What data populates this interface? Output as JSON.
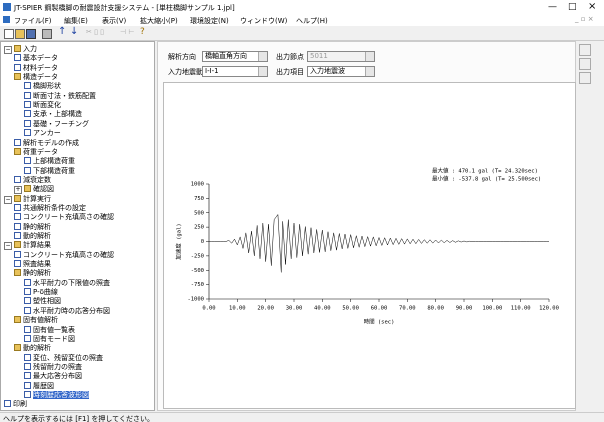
{
  "window": {
    "title": "JT-SPIER 鋼製橋脚の耐震設計支援システム - [単柱橋脚サンプル 1.jpl]"
  },
  "menu": [
    "ファイル(F)",
    "編集(E)",
    "表示(V)",
    "拡大縮小(P)",
    "環境設定(N)",
    "ウィンドウ(W)",
    "ヘルプ(H)"
  ],
  "form": {
    "direction_label": "解析方向",
    "direction": "橋軸直角方向",
    "node_label": "出力節点",
    "node": "5011",
    "wave_label": "入力地震動",
    "wave": "I-I-1",
    "item_label": "出力項目",
    "item": "入力地震波"
  },
  "tree": [
    {
      "label": "入力",
      "children": [
        {
          "label": "基本データ"
        },
        {
          "label": "材料データ"
        },
        {
          "label": "構造データ",
          "children": [
            {
              "label": "橋脚形状"
            },
            {
              "label": "断面寸法・鉄筋配置"
            },
            {
              "label": "断面変化"
            },
            {
              "label": "支承・上部構造"
            },
            {
              "label": "基礎・フーチング"
            },
            {
              "label": "アンカー"
            }
          ]
        },
        {
          "label": "解析モデルの作成"
        },
        {
          "label": "荷重データ",
          "children": [
            {
              "label": "上部構造荷重"
            },
            {
              "label": "下部構造荷重"
            }
          ]
        },
        {
          "label": "減衰定数"
        },
        {
          "label": "確認図",
          "collapsed": true
        }
      ]
    },
    {
      "label": "計算実行",
      "children": [
        {
          "label": "共通解析条件の設定"
        },
        {
          "label": "コンクリート充填高さの確認"
        },
        {
          "label": "静的解析"
        },
        {
          "label": "動的解析"
        }
      ]
    },
    {
      "label": "計算結果",
      "children": [
        {
          "label": "コンクリート充填高さの確認"
        },
        {
          "label": "照査結果"
        },
        {
          "label": "静的解析",
          "children": [
            {
              "label": "水平耐力の下限値の照査"
            },
            {
              "label": "P-δ曲線"
            },
            {
              "label": "塑性相図"
            },
            {
              "label": "水平耐力時の応答分布図"
            }
          ]
        },
        {
          "label": "固有値解析",
          "children": [
            {
              "label": "固有値一覧表"
            },
            {
              "label": "固有モード図"
            }
          ]
        },
        {
          "label": "動的解析",
          "children": [
            {
              "label": "変位、残留変位の照査"
            },
            {
              "label": "残留耐力の照査"
            },
            {
              "label": "最大応答分布図"
            },
            {
              "label": "履歴図"
            },
            {
              "label": "時刻歴応答波形図",
              "selected": true
            }
          ]
        }
      ]
    },
    {
      "label": "印刷"
    }
  ],
  "status": "ヘルプを表示するには [F1] を押してください。",
  "chart_data": {
    "type": "line",
    "x_label": "時間 (sec)",
    "y_label": "加速度 (gal)",
    "annotations": [
      "最大値 :   470.1 gal (T= 24.320sec)",
      "最小値 :  -537.8 gal (T= 25.500sec)"
    ],
    "x": [
      0,
      1,
      2,
      3,
      4,
      5,
      6,
      7,
      8,
      9,
      10,
      11,
      12,
      13,
      14,
      15,
      16,
      17,
      18,
      19,
      20,
      21,
      22,
      23,
      24.32,
      25.5,
      26,
      27,
      28,
      29,
      30,
      31,
      32,
      33,
      34,
      35,
      36,
      37,
      38,
      39,
      40,
      41,
      42,
      43,
      44,
      45,
      46,
      47,
      48,
      49,
      50,
      51,
      52,
      53,
      54,
      55,
      56,
      57,
      58,
      59,
      60,
      61,
      62,
      63,
      64,
      65,
      66,
      67,
      68,
      69,
      70,
      71,
      72,
      73,
      74,
      75,
      76,
      77,
      78,
      79,
      80,
      81,
      82,
      83,
      84,
      85,
      86,
      87,
      88,
      89,
      90,
      91,
      92,
      93,
      94,
      95,
      96,
      97,
      98,
      99,
      100,
      101,
      102,
      103,
      104,
      105,
      106,
      107,
      108,
      109,
      110,
      111,
      112,
      113,
      114,
      115,
      116,
      117,
      118,
      119,
      120
    ],
    "series": [
      {
        "color": "#000000",
        "values": [
          0,
          0,
          0,
          0,
          0,
          0,
          0,
          20,
          -30,
          40,
          -60,
          80,
          -120,
          150,
          -200,
          180,
          -250,
          280,
          -300,
          320,
          -350,
          300,
          -420,
          380,
          470.1,
          -537.8,
          350,
          -400,
          380,
          -300,
          320,
          -280,
          300,
          -250,
          260,
          -220,
          240,
          -200,
          210,
          -190,
          200,
          -180,
          170,
          -160,
          150,
          -150,
          140,
          -130,
          130,
          -120,
          120,
          -110,
          100,
          -100,
          95,
          -90,
          85,
          -80,
          80,
          -75,
          70,
          -70,
          65,
          -60,
          60,
          -55,
          55,
          -50,
          50,
          -45,
          45,
          -40,
          40,
          -38,
          36,
          -34,
          32,
          -30,
          30,
          -28,
          26,
          -25,
          24,
          -22,
          20,
          -18,
          16,
          -14,
          12,
          -10,
          9,
          -8,
          6,
          -5,
          4,
          -3,
          2,
          0,
          0,
          0,
          0,
          0,
          0,
          0,
          0,
          0,
          0,
          0,
          0,
          0,
          0,
          0,
          0,
          0,
          0,
          0,
          0,
          0,
          0,
          0,
          0
        ]
      }
    ],
    "xlim": [
      0,
      120
    ],
    "xticks": [
      {
        "value": 0,
        "label": "0.00"
      },
      {
        "value": 10,
        "label": "10.00"
      },
      {
        "value": 20,
        "label": "20.00"
      },
      {
        "value": 30,
        "label": "30.00"
      },
      {
        "value": 40,
        "label": "40.00"
      },
      {
        "value": 50,
        "label": "50.00"
      },
      {
        "value": 60,
        "label": "60.00"
      },
      {
        "value": 70,
        "label": "70.00"
      },
      {
        "value": 80,
        "label": "80.00"
      },
      {
        "value": 90,
        "label": "90.00"
      },
      {
        "value": 100,
        "label": "100.00"
      },
      {
        "value": 110,
        "label": "110.00"
      },
      {
        "value": 120,
        "label": "120.00"
      }
    ],
    "ylim": [
      -1000,
      1000
    ],
    "yticks": [
      -1000,
      -750,
      -500,
      -250,
      0,
      250,
      500,
      750,
      1000
    ]
  }
}
